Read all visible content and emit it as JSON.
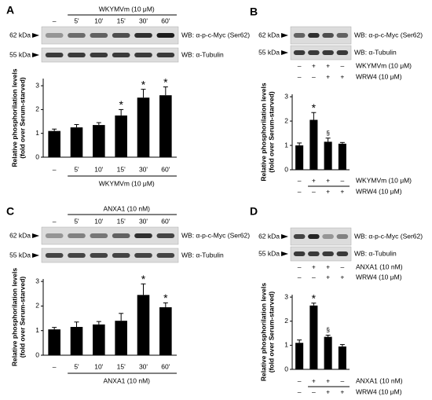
{
  "chart_data": [
    {
      "type": "bar",
      "panel": "A",
      "treatment": "WKYMVm (10 μM)",
      "blot_labels": [
        {
          "size": "62 kDa",
          "antibody": "WB: α-p-c-Myc (Ser62)"
        },
        {
          "size": "55 kDa",
          "antibody": "WB: α-Tubulin"
        }
      ],
      "categories": [
        "–",
        "5'",
        "10'",
        "15'",
        "30'",
        "60'"
      ],
      "values": [
        1.1,
        1.25,
        1.35,
        1.75,
        2.5,
        2.6
      ],
      "errors": [
        0.08,
        0.12,
        0.1,
        0.25,
        0.35,
        0.35
      ],
      "significance": [
        null,
        null,
        null,
        "*",
        "*",
        "*"
      ],
      "y_label": [
        "Relative phosphorilation levels",
        "(fold over Serum-starved)"
      ],
      "ylim": [
        0,
        3.3
      ],
      "yticks": [
        0,
        1,
        2,
        3
      ],
      "color": "#000000"
    },
    {
      "type": "bar",
      "panel": "B",
      "blot_labels": [
        {
          "size": "62 kDa",
          "antibody": "WB: α-p-c-Myc (Ser62)"
        },
        {
          "size": "55 kDa",
          "antibody": "WB: α-Tubulin"
        }
      ],
      "treatments": [
        {
          "name": "WKYMVm (10 μM)",
          "signs": [
            "–",
            "+",
            "+",
            "–"
          ]
        },
        {
          "name": "WRW4 (10 μM)",
          "signs": [
            "–",
            "–",
            "+",
            "+"
          ]
        }
      ],
      "values": [
        1.0,
        2.05,
        1.15,
        1.07
      ],
      "errors": [
        0.1,
        0.3,
        0.15,
        0.05
      ],
      "significance": [
        null,
        "*",
        "§",
        null
      ],
      "y_label": [
        "Relative phosphorilation levels",
        "(fold over Serum-starved)"
      ],
      "ylim": [
        0,
        3.1
      ],
      "yticks": [
        0,
        1,
        2,
        3
      ],
      "color": "#000000"
    },
    {
      "type": "bar",
      "panel": "C",
      "treatment": "ANXA1 (10 nM)",
      "blot_labels": [
        {
          "size": "62 kDa",
          "antibody": "WB: α-p-c-Myc (Ser62)"
        },
        {
          "size": "55 kDa",
          "antibody": "WB: α-Tubulin"
        }
      ],
      "categories": [
        "–",
        "5'",
        "10'",
        "15'",
        "30'",
        "60'"
      ],
      "values": [
        1.05,
        1.15,
        1.25,
        1.4,
        2.45,
        1.95
      ],
      "errors": [
        0.08,
        0.2,
        0.12,
        0.3,
        0.45,
        0.18
      ],
      "significance": [
        null,
        null,
        null,
        null,
        "*",
        "*"
      ],
      "y_label": [
        "Relative phosphorilation levels",
        "(fold over Serum-starved)"
      ],
      "ylim": [
        0,
        3.1
      ],
      "yticks": [
        0,
        1,
        2,
        3
      ],
      "color": "#000000"
    },
    {
      "type": "bar",
      "panel": "D",
      "blot_labels": [
        {
          "size": "62 kDa",
          "antibody": "WB: α-p-c-Myc (Ser62)"
        },
        {
          "size": "55 kDa",
          "antibody": "WB: α-Tubulin"
        }
      ],
      "treatments": [
        {
          "name": "ANXA1 (10 nM)",
          "signs": [
            "–",
            "+",
            "+",
            "–"
          ]
        },
        {
          "name": "WRW4 (10 μM)",
          "signs": [
            "–",
            "–",
            "+",
            "+"
          ]
        }
      ],
      "values": [
        1.1,
        2.65,
        1.35,
        0.95
      ],
      "errors": [
        0.12,
        0.1,
        0.07,
        0.08
      ],
      "significance": [
        null,
        "*",
        "§",
        null
      ],
      "y_label": [
        "Relative phosphorilation levels",
        "(fold over Serum-starved)"
      ],
      "ylim": [
        0,
        3.1
      ],
      "yticks": [
        0,
        1,
        2,
        3
      ],
      "color": "#000000"
    }
  ]
}
